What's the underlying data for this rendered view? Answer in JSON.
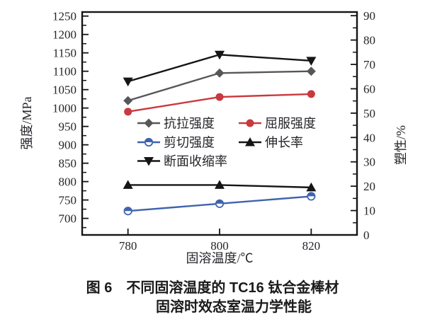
{
  "caption": {
    "line1": "图 6　不同固溶温度的 TC16 钛合金棒材",
    "line2": "固溶时效态室温力学性能"
  },
  "chart_data": {
    "type": "line",
    "x": [
      780,
      800,
      820
    ],
    "x_tick_labels": [
      "780",
      "800",
      "820"
    ],
    "xlabel": "固溶温度/℃",
    "ylabel_left": "强度/MPa",
    "ylabel_right": "塑性/%",
    "xlim": [
      770,
      830
    ],
    "ylim_left": [
      655,
      1261
    ],
    "yticks_left": [
      700,
      750,
      800,
      850,
      900,
      950,
      1000,
      1050,
      1100,
      1150,
      1200,
      1250
    ],
    "yticks_left_minor_start": 675,
    "ylim_right": [
      0,
      91.5
    ],
    "yticks_right": [
      0,
      10,
      20,
      30,
      40,
      50,
      60,
      70,
      80,
      90
    ],
    "grid": false,
    "legend_position": "inside-center",
    "series": [
      {
        "key": "tensile-strength",
        "name": "抗拉强度",
        "axis": "left",
        "marker": "diamond",
        "color": "#57575a",
        "values": [
          1020,
          1095,
          1100
        ]
      },
      {
        "key": "yield-strength",
        "name": "屈服强度",
        "axis": "left",
        "marker": "circle",
        "color": "#c9393d",
        "values": [
          990,
          1030,
          1038
        ]
      },
      {
        "key": "shear-strength",
        "name": "剪切强度",
        "axis": "left",
        "marker": "circle-half",
        "color": "#3f63ae",
        "values": [
          720,
          740,
          760
        ]
      },
      {
        "key": "elongation",
        "name": "伸长率",
        "axis": "right",
        "marker": "triangle-up",
        "color": "#151515",
        "values": [
          20.5,
          20.5,
          19.5
        ]
      },
      {
        "key": "reduction-of-area",
        "name": "断面收缩率",
        "axis": "right",
        "marker": "triangle-down",
        "color": "#151515",
        "values": [
          63,
          74,
          71.5
        ]
      }
    ],
    "frame_color": "#141414"
  }
}
